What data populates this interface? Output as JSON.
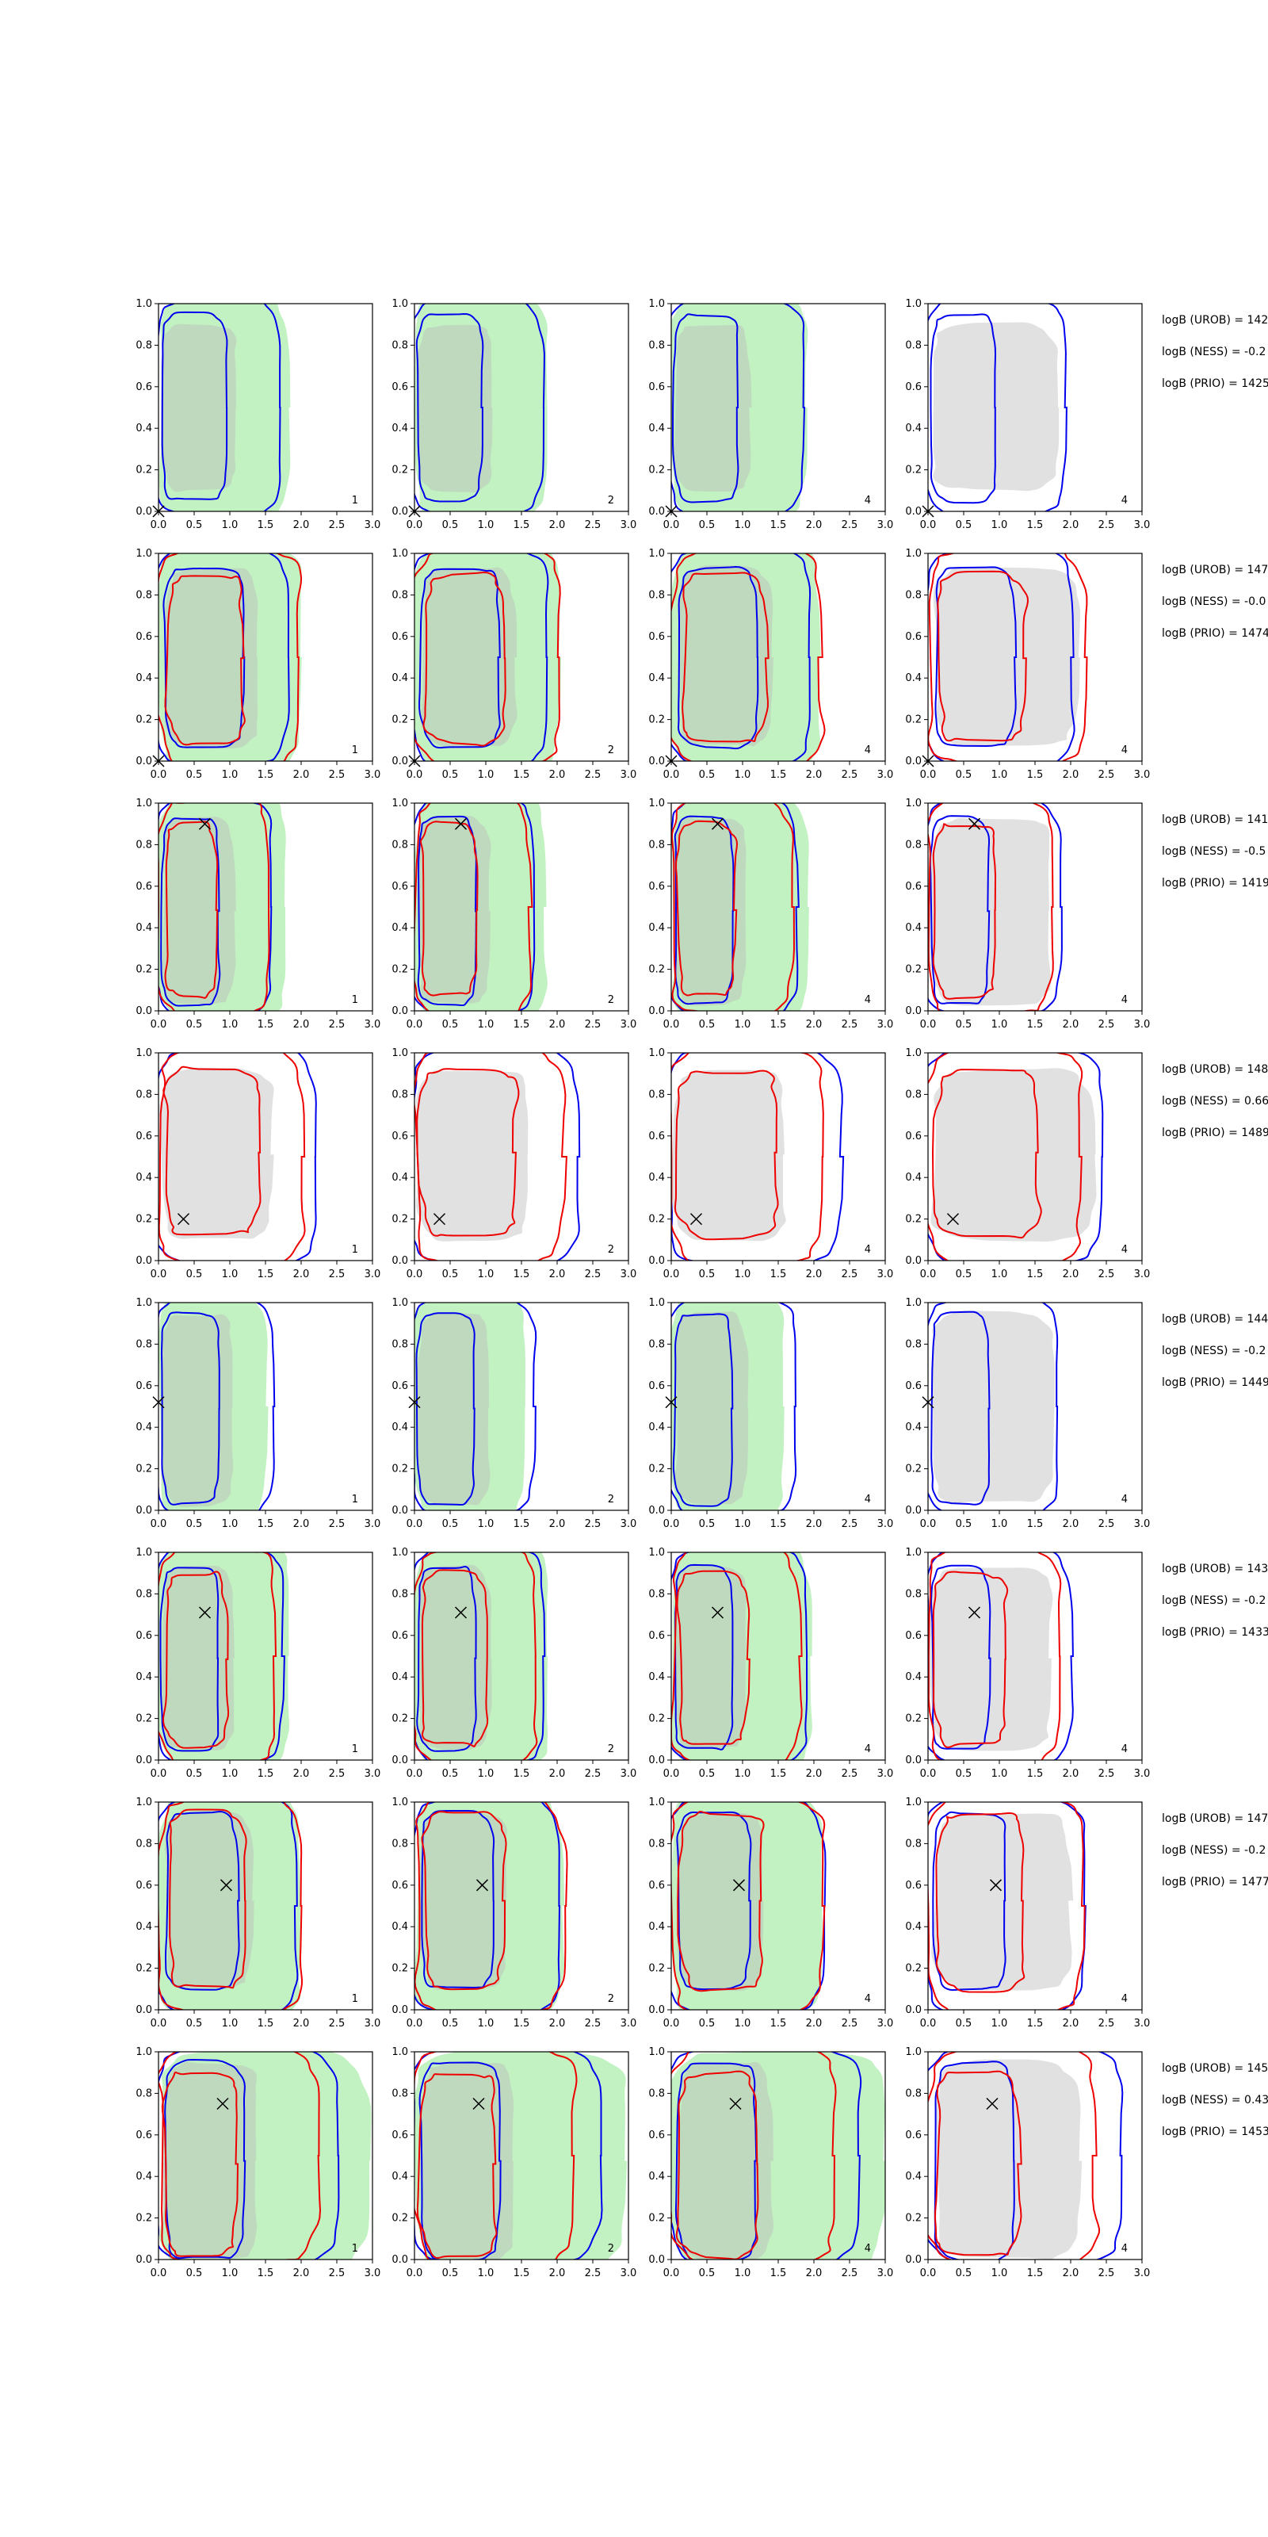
{
  "colors": {
    "green_fill": "#90e690",
    "gray_fill": "#bdbdbd",
    "blue_line": "#0000ee",
    "red_line": "#ee0000",
    "axis": "#000000"
  },
  "chart_data": {
    "type": "contour-grid",
    "rows": 8,
    "cols": 4,
    "xlim": [
      0.0,
      3.0
    ],
    "ylim": [
      0.0,
      1.0
    ],
    "xticks": [
      "0.0",
      "0.5",
      "1.0",
      "1.5",
      "2.0",
      "2.5",
      "3.0"
    ],
    "yticks": [
      "0.0",
      "0.2",
      "0.4",
      "0.6",
      "0.8",
      "1.0"
    ],
    "column_labels": [
      "1",
      "2",
      "4",
      "4"
    ],
    "markers": [
      {
        "row": 1,
        "x": 0.0,
        "y": 0.0
      },
      {
        "row": 2,
        "x": 0.0,
        "y": 0.0
      },
      {
        "row": 3,
        "x": 0.65,
        "y": 0.9
      },
      {
        "row": 4,
        "x": 0.35,
        "y": 0.2
      },
      {
        "row": 5,
        "x": 0.0,
        "y": 0.52
      },
      {
        "row": 6,
        "x": 0.65,
        "y": 0.71
      },
      {
        "row": 7,
        "x": 0.95,
        "y": 0.6
      },
      {
        "row": 8,
        "x": 0.9,
        "y": 0.75
      }
    ],
    "annotations": [
      [
        "logB (UROB) = 142",
        "logB (NESS) = -0.2",
        "logB (PRIO) = 1425"
      ],
      [
        "logB (UROB) = 147",
        "logB (NESS) = -0.0",
        "logB (PRIO) = 1474"
      ],
      [
        "logB (UROB) = 141",
        "logB (NESS) = -0.5",
        "logB (PRIO) = 1419"
      ],
      [
        "logB (UROB) = 148",
        "logB (NESS) = 0.66",
        "logB (PRIO) = 1489"
      ],
      [
        "logB (UROB) = 144",
        "logB (NESS) = -0.2",
        "logB (PRIO) = 1449"
      ],
      [
        "logB (UROB) = 143",
        "logB (NESS) = -0.2",
        "logB (PRIO) = 1433"
      ],
      [
        "logB (UROB) = 147",
        "logB (NESS) = -0.2",
        "logB (PRIO) = 1477"
      ],
      [
        "logB (UROB) = 145",
        "logB (NESS) = 0.43",
        "logB (PRIO) = 1453"
      ]
    ],
    "contours": [
      {
        "row": 1,
        "green": {
          "x": [
            0.0,
            1.8
          ],
          "y": [
            0.0,
            1.0
          ]
        },
        "blue_inner": {
          "x": [
            0.05,
            0.95
          ],
          "y": [
            0.05,
            0.95
          ]
        },
        "blue_outer": {
          "x": [
            0.0,
            1.7
          ],
          "y": [
            0.0,
            1.0
          ]
        },
        "gray": {
          "x": [
            0.05,
            0.9
          ],
          "y": [
            0.1,
            0.9
          ]
        }
      },
      {
        "row": 2,
        "green": {
          "x": [
            0.0,
            2.0
          ],
          "y": [
            0.0,
            1.0
          ]
        },
        "blue_inner": {
          "x": [
            0.1,
            1.2
          ],
          "y": [
            0.07,
            0.93
          ]
        },
        "blue_outer": {
          "x": [
            0.0,
            1.8
          ],
          "y": [
            0.0,
            1.0
          ]
        },
        "red_inner": {
          "x": [
            0.1,
            1.2
          ],
          "y": [
            0.07,
            0.9
          ]
        },
        "red_outer": {
          "x": [
            0.0,
            2.0
          ],
          "y": [
            0.0,
            1.0
          ]
        }
      },
      {
        "row": 3,
        "green": {
          "x": [
            0.0,
            1.8
          ],
          "y": [
            0.0,
            1.0
          ]
        },
        "blue_inner": {
          "x": [
            0.05,
            0.85
          ],
          "y": [
            0.03,
            0.93
          ]
        },
        "blue_outer": {
          "x": [
            0.0,
            1.6
          ],
          "y": [
            0.0,
            1.0
          ]
        },
        "red_inner": {
          "x": [
            0.05,
            0.8
          ],
          "y": [
            0.05,
            0.9
          ]
        },
        "red_outer": {
          "x": [
            0.0,
            1.55
          ],
          "y": [
            0.0,
            1.0
          ]
        }
      },
      {
        "row": 4,
        "blue_outer": {
          "x": [
            0.0,
            2.2
          ],
          "y": [
            0.0,
            1.0
          ]
        },
        "red_inner": {
          "x": [
            0.05,
            1.4
          ],
          "y": [
            0.1,
            0.92
          ]
        },
        "red_outer": {
          "x": [
            0.0,
            2.0
          ],
          "y": [
            0.0,
            1.0
          ]
        }
      },
      {
        "row": 5,
        "green": {
          "x": [
            0.0,
            1.5
          ],
          "y": [
            0.0,
            1.0
          ]
        },
        "blue_inner": {
          "x": [
            0.05,
            0.85
          ],
          "y": [
            0.03,
            0.95
          ]
        },
        "blue_outer": {
          "x": [
            0.0,
            1.6
          ],
          "y": [
            0.0,
            1.0
          ]
        }
      },
      {
        "row": 6,
        "green": {
          "x": [
            0.0,
            1.85
          ],
          "y": [
            0.0,
            1.0
          ]
        },
        "blue_inner": {
          "x": [
            0.05,
            0.85
          ],
          "y": [
            0.05,
            0.93
          ]
        },
        "blue_outer": {
          "x": [
            0.0,
            1.75
          ],
          "y": [
            0.0,
            1.0
          ]
        },
        "red_inner": {
          "x": [
            0.05,
            0.95
          ],
          "y": [
            0.05,
            0.9
          ]
        },
        "red_outer": {
          "x": [
            0.0,
            1.65
          ],
          "y": [
            0.0,
            1.0
          ]
        }
      },
      {
        "row": 7,
        "green": {
          "x": [
            0.0,
            2.0
          ],
          "y": [
            0.0,
            1.0
          ]
        },
        "blue_inner": {
          "x": [
            0.1,
            1.1
          ],
          "y": [
            0.1,
            0.95
          ]
        },
        "blue_outer": {
          "x": [
            0.0,
            1.95
          ],
          "y": [
            0.0,
            1.0
          ]
        },
        "red_inner": {
          "x": [
            0.1,
            1.2
          ],
          "y": [
            0.08,
            0.95
          ]
        },
        "red_outer": {
          "x": [
            0.0,
            2.0
          ],
          "y": [
            0.0,
            1.0
          ]
        }
      },
      {
        "row": 8,
        "green": {
          "x": [
            0.0,
            2.9
          ],
          "y": [
            0.0,
            0.95
          ]
        },
        "blue_inner": {
          "x": [
            0.1,
            1.2
          ],
          "y": [
            0.0,
            0.95
          ]
        },
        "blue_outer": {
          "x": [
            0.0,
            2.5
          ],
          "y": [
            0.0,
            1.0
          ]
        },
        "red_inner": {
          "x": [
            0.05,
            1.1
          ],
          "y": [
            0.0,
            0.9
          ]
        },
        "red_outer": {
          "x": [
            0.0,
            2.2
          ],
          "y": [
            0.0,
            1.0
          ]
        }
      }
    ]
  }
}
